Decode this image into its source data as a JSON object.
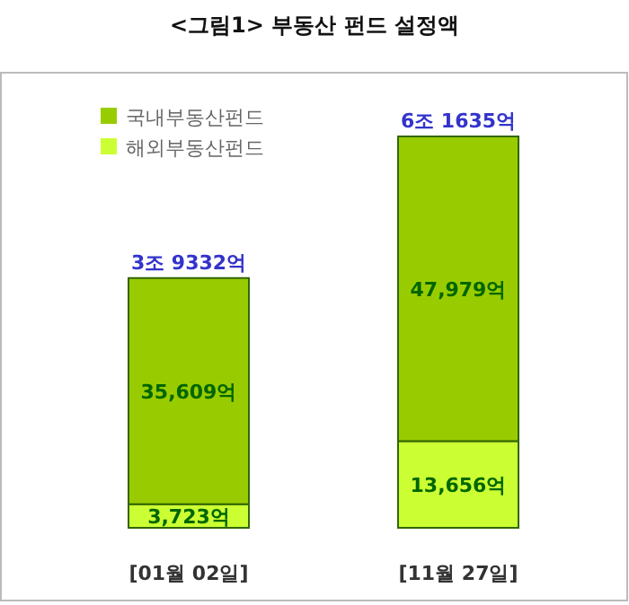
{
  "chart_data": {
    "type": "bar",
    "title": "<그림1> 부동산 펀드 설정액",
    "categories": [
      "[01월 02일]",
      "[11월 27일]"
    ],
    "stacked": true,
    "legend": "top left",
    "series": [
      {
        "name": "해외부동산펀드",
        "color": "#ccff33",
        "values": [
          3723,
          13656
        ],
        "value_labels": [
          "3,723억",
          "13,656억"
        ]
      },
      {
        "name": "국내부동산펀드",
        "color": "#99cc00",
        "values": [
          35609,
          47979
        ],
        "value_labels": [
          "35,609억",
          "47,979억"
        ]
      }
    ],
    "totals": [
      "3조 9332억",
      "6조 1635억"
    ]
  }
}
